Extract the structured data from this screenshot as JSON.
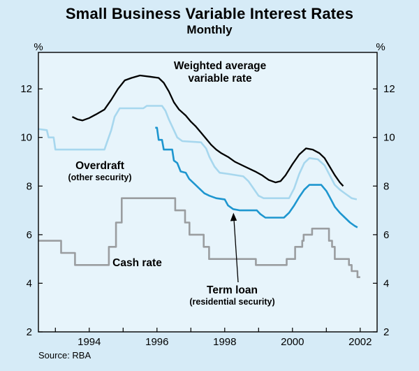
{
  "title": "Small Business Variable Interest Rates",
  "subtitle": "Monthly",
  "source": "Source: RBA",
  "axes": {
    "y_unit": "%"
  },
  "annotations": {
    "weighted_average": {
      "line1": "Weighted average",
      "line2": "variable rate"
    },
    "overdraft": {
      "label": "Overdraft",
      "sub": "(other security)"
    },
    "cash_rate": {
      "label": "Cash rate"
    },
    "term_loan": {
      "label": "Term loan",
      "sub": "(residential security)"
    }
  },
  "colors": {
    "background": "#d6ebf7",
    "plot_background": "#e7f4fb",
    "frame": "#000000",
    "text": "#000000"
  },
  "chart_data": {
    "type": "line",
    "title": "Small Business Variable Interest Rates",
    "subtitle": "Monthly",
    "xlabel": "",
    "ylabel": "%",
    "grid": false,
    "legend": "none (labels annotated on chart)",
    "x_range": [
      1992.5,
      2002.5
    ],
    "y_range": [
      2,
      13.5
    ],
    "y_ticks": [
      2,
      4,
      6,
      8,
      10,
      12
    ],
    "x_tick_years": [
      1993,
      1994,
      1995,
      1996,
      1997,
      1998,
      1999,
      2000,
      2001,
      2002
    ],
    "x_label_years": [
      1994,
      1996,
      1998,
      2000,
      2002
    ],
    "series": [
      {
        "id": "cash-rate",
        "name": "Cash rate",
        "color": "#9a9da0",
        "stroke_width": 2.6,
        "points": [
          [
            1992.5,
            5.75
          ],
          [
            1993.17,
            5.75
          ],
          [
            1993.17,
            5.25
          ],
          [
            1993.58,
            5.25
          ],
          [
            1993.58,
            4.75
          ],
          [
            1994.58,
            4.75
          ],
          [
            1994.58,
            5.5
          ],
          [
            1994.79,
            5.5
          ],
          [
            1994.79,
            6.5
          ],
          [
            1994.96,
            6.5
          ],
          [
            1994.96,
            7.5
          ],
          [
            1996.54,
            7.5
          ],
          [
            1996.54,
            7.0
          ],
          [
            1996.83,
            7.0
          ],
          [
            1996.83,
            6.5
          ],
          [
            1996.96,
            6.5
          ],
          [
            1996.96,
            6.0
          ],
          [
            1997.38,
            6.0
          ],
          [
            1997.38,
            5.5
          ],
          [
            1997.54,
            5.5
          ],
          [
            1997.54,
            5.0
          ],
          [
            1998.92,
            5.0
          ],
          [
            1998.92,
            4.75
          ],
          [
            1999.83,
            4.75
          ],
          [
            1999.83,
            5.0
          ],
          [
            2000.08,
            5.0
          ],
          [
            2000.08,
            5.5
          ],
          [
            2000.29,
            5.5
          ],
          [
            2000.29,
            5.75
          ],
          [
            2000.33,
            5.75
          ],
          [
            2000.33,
            6.0
          ],
          [
            2000.58,
            6.0
          ],
          [
            2000.58,
            6.25
          ],
          [
            2001.08,
            6.25
          ],
          [
            2001.08,
            5.75
          ],
          [
            2001.17,
            5.75
          ],
          [
            2001.17,
            5.5
          ],
          [
            2001.25,
            5.5
          ],
          [
            2001.25,
            5.0
          ],
          [
            2001.67,
            5.0
          ],
          [
            2001.67,
            4.75
          ],
          [
            2001.75,
            4.75
          ],
          [
            2001.75,
            4.5
          ],
          [
            2001.92,
            4.5
          ],
          [
            2001.92,
            4.25
          ],
          [
            2002.0,
            4.25
          ]
        ]
      },
      {
        "id": "overdraft",
        "name": "Overdraft (other security)",
        "color": "#a7d7ee",
        "stroke_width": 2.6,
        "points": [
          [
            1992.5,
            10.35
          ],
          [
            1992.75,
            10.3
          ],
          [
            1992.8,
            10.0
          ],
          [
            1992.95,
            10.0
          ],
          [
            1993.0,
            9.5
          ],
          [
            1994.35,
            9.5
          ],
          [
            1994.45,
            9.5
          ],
          [
            1994.55,
            9.9
          ],
          [
            1994.65,
            10.3
          ],
          [
            1994.75,
            10.85
          ],
          [
            1994.9,
            11.2
          ],
          [
            1995.6,
            11.2
          ],
          [
            1995.7,
            11.3
          ],
          [
            1996.15,
            11.3
          ],
          [
            1996.25,
            11.1
          ],
          [
            1996.35,
            10.75
          ],
          [
            1996.5,
            10.3
          ],
          [
            1996.6,
            10.0
          ],
          [
            1996.75,
            9.85
          ],
          [
            1997.3,
            9.8
          ],
          [
            1997.45,
            9.55
          ],
          [
            1997.55,
            9.2
          ],
          [
            1997.7,
            8.8
          ],
          [
            1997.85,
            8.55
          ],
          [
            1998.1,
            8.5
          ],
          [
            1998.55,
            8.4
          ],
          [
            1998.7,
            8.2
          ],
          [
            1998.85,
            7.9
          ],
          [
            1999.0,
            7.6
          ],
          [
            1999.15,
            7.5
          ],
          [
            1999.9,
            7.5
          ],
          [
            2000.05,
            7.9
          ],
          [
            2000.2,
            8.5
          ],
          [
            2000.35,
            8.95
          ],
          [
            2000.5,
            9.15
          ],
          [
            2000.75,
            9.1
          ],
          [
            2000.95,
            8.85
          ],
          [
            2001.1,
            8.45
          ],
          [
            2001.25,
            8.05
          ],
          [
            2001.4,
            7.85
          ],
          [
            2001.6,
            7.65
          ],
          [
            2001.75,
            7.5
          ],
          [
            2001.9,
            7.45
          ]
        ]
      },
      {
        "id": "term-loan",
        "name": "Term loan (residential security)",
        "color": "#1e96cf",
        "stroke_width": 2.6,
        "points": [
          [
            1995.95,
            10.4
          ],
          [
            1996.0,
            10.4
          ],
          [
            1996.05,
            9.9
          ],
          [
            1996.15,
            9.9
          ],
          [
            1996.2,
            9.5
          ],
          [
            1996.45,
            9.5
          ],
          [
            1996.5,
            9.05
          ],
          [
            1996.6,
            8.95
          ],
          [
            1996.7,
            8.6
          ],
          [
            1996.85,
            8.55
          ],
          [
            1996.95,
            8.3
          ],
          [
            1997.1,
            8.1
          ],
          [
            1997.25,
            7.9
          ],
          [
            1997.4,
            7.7
          ],
          [
            1997.55,
            7.6
          ],
          [
            1997.75,
            7.5
          ],
          [
            1998.0,
            7.45
          ],
          [
            1998.1,
            7.2
          ],
          [
            1998.25,
            7.05
          ],
          [
            1998.45,
            7.0
          ],
          [
            1998.95,
            7.0
          ],
          [
            1999.05,
            6.85
          ],
          [
            1999.2,
            6.7
          ],
          [
            1999.75,
            6.7
          ],
          [
            1999.9,
            6.9
          ],
          [
            2000.05,
            7.2
          ],
          [
            2000.2,
            7.55
          ],
          [
            2000.35,
            7.85
          ],
          [
            2000.5,
            8.05
          ],
          [
            2000.85,
            8.05
          ],
          [
            2001.0,
            7.8
          ],
          [
            2001.1,
            7.55
          ],
          [
            2001.25,
            7.15
          ],
          [
            2001.4,
            6.9
          ],
          [
            2001.55,
            6.7
          ],
          [
            2001.7,
            6.5
          ],
          [
            2001.85,
            6.35
          ],
          [
            2001.92,
            6.3
          ]
        ]
      },
      {
        "id": "weighted-average",
        "name": "Weighted average variable rate",
        "color": "#000000",
        "stroke_width": 2.3,
        "points": [
          [
            1993.5,
            10.85
          ],
          [
            1993.65,
            10.75
          ],
          [
            1993.8,
            10.7
          ],
          [
            1994.0,
            10.8
          ],
          [
            1994.2,
            10.95
          ],
          [
            1994.45,
            11.15
          ],
          [
            1994.65,
            11.55
          ],
          [
            1994.85,
            12.0
          ],
          [
            1995.05,
            12.35
          ],
          [
            1995.25,
            12.45
          ],
          [
            1995.5,
            12.55
          ],
          [
            1995.8,
            12.5
          ],
          [
            1996.05,
            12.45
          ],
          [
            1996.2,
            12.25
          ],
          [
            1996.35,
            11.9
          ],
          [
            1996.5,
            11.45
          ],
          [
            1996.65,
            11.15
          ],
          [
            1996.85,
            10.9
          ],
          [
            1997.0,
            10.65
          ],
          [
            1997.15,
            10.45
          ],
          [
            1997.3,
            10.2
          ],
          [
            1997.45,
            9.95
          ],
          [
            1997.6,
            9.7
          ],
          [
            1997.75,
            9.5
          ],
          [
            1997.9,
            9.35
          ],
          [
            1998.1,
            9.2
          ],
          [
            1998.3,
            9.0
          ],
          [
            1998.6,
            8.8
          ],
          [
            1998.9,
            8.6
          ],
          [
            1999.1,
            8.45
          ],
          [
            1999.3,
            8.25
          ],
          [
            1999.5,
            8.15
          ],
          [
            1999.65,
            8.2
          ],
          [
            1999.8,
            8.45
          ],
          [
            2000.0,
            8.9
          ],
          [
            2000.2,
            9.3
          ],
          [
            2000.4,
            9.55
          ],
          [
            2000.6,
            9.5
          ],
          [
            2000.8,
            9.35
          ],
          [
            2000.95,
            9.15
          ],
          [
            2001.1,
            8.8
          ],
          [
            2001.25,
            8.45
          ],
          [
            2001.4,
            8.15
          ],
          [
            2001.5,
            8.0
          ]
        ]
      }
    ]
  }
}
